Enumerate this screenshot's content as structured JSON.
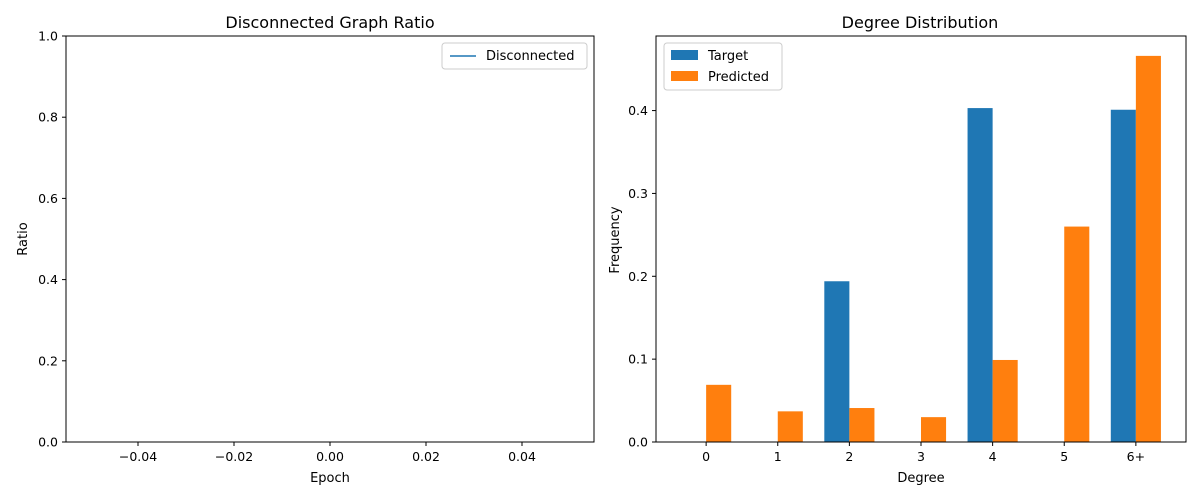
{
  "chart_data": [
    {
      "type": "line",
      "title": "Disconnected Graph Ratio",
      "xlabel": "Epoch",
      "ylabel": "Ratio",
      "xlim": [
        -0.055,
        0.055
      ],
      "ylim": [
        0,
        1
      ],
      "xticks": [
        -0.04,
        -0.02,
        0.0,
        0.02,
        0.04
      ],
      "xtick_labels": [
        "−0.04",
        "−0.02",
        "0.00",
        "0.02",
        "0.04"
      ],
      "yticks": [
        0.0,
        0.2,
        0.4,
        0.6,
        0.8,
        1.0
      ],
      "ytick_labels": [
        "0.0",
        "0.2",
        "0.4",
        "0.6",
        "0.8",
        "1.0"
      ],
      "series": [
        {
          "name": "Disconnected",
          "color": "#1f77b4",
          "x": [],
          "y": []
        }
      ],
      "legend": "top-right",
      "grid": false
    },
    {
      "type": "bar",
      "title": "Degree Distribution",
      "xlabel": "Degree",
      "ylabel": "Frequency",
      "categories": [
        "0",
        "1",
        "2",
        "3",
        "4",
        "5",
        "6+"
      ],
      "ylim": [
        0,
        0.49
      ],
      "yticks": [
        0.0,
        0.1,
        0.2,
        0.3,
        0.4
      ],
      "ytick_labels": [
        "0.0",
        "0.1",
        "0.2",
        "0.3",
        "0.4"
      ],
      "series": [
        {
          "name": "Target",
          "color": "#1f77b4",
          "values": [
            0.0,
            0.0,
            0.194,
            0.0,
            0.403,
            0.0,
            0.401
          ]
        },
        {
          "name": "Predicted",
          "color": "#ff7f0e",
          "values": [
            0.069,
            0.037,
            0.041,
            0.03,
            0.099,
            0.26,
            0.466
          ]
        }
      ],
      "legend": "top-left",
      "grid": false
    }
  ]
}
